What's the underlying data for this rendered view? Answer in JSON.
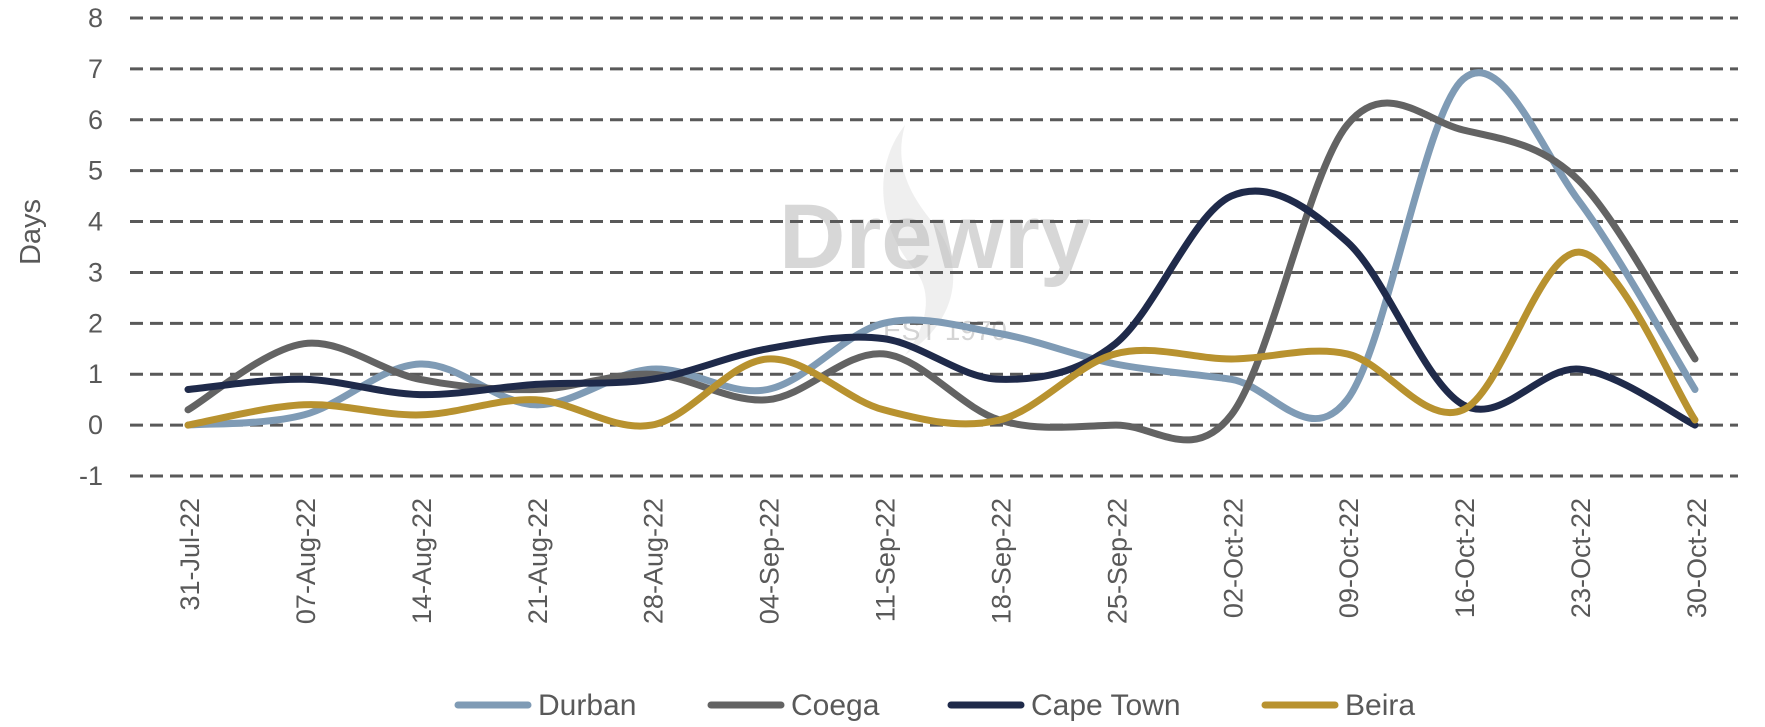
{
  "chart_data": {
    "type": "line",
    "ylabel": "Days",
    "xlabel": "",
    "ylim": [
      -1,
      8
    ],
    "yticks": [
      -1,
      0,
      1,
      2,
      3,
      4,
      5,
      6,
      7,
      8
    ],
    "grid": true,
    "legend_position": "bottom",
    "categories": [
      "31-Jul-22",
      "07-Aug-22",
      "14-Aug-22",
      "21-Aug-22",
      "28-Aug-22",
      "04-Sep-22",
      "11-Sep-22",
      "18-Sep-22",
      "25-Sep-22",
      "02-Oct-22",
      "09-Oct-22",
      "16-Oct-22",
      "23-Oct-22",
      "30-Oct-22"
    ],
    "series": [
      {
        "name": "Durban",
        "color": "#7f9bb5",
        "values": [
          0.0,
          0.2,
          1.2,
          0.4,
          1.1,
          0.7,
          2.0,
          1.8,
          1.2,
          0.9,
          0.5,
          6.8,
          4.4,
          0.7
        ]
      },
      {
        "name": "Coega",
        "color": "#636363",
        "values": [
          0.3,
          1.6,
          0.9,
          0.7,
          1.0,
          0.5,
          1.4,
          0.1,
          0.0,
          0.2,
          5.9,
          5.8,
          4.8,
          1.3
        ]
      },
      {
        "name": "Cape Town",
        "color": "#1f2a4a",
        "values": [
          0.7,
          0.9,
          0.6,
          0.8,
          0.9,
          1.5,
          1.7,
          0.9,
          1.6,
          4.5,
          3.6,
          0.4,
          1.1,
          0.0
        ]
      },
      {
        "name": "Beira",
        "color": "#b8922f",
        "values": [
          0.0,
          0.4,
          0.2,
          0.5,
          0.0,
          1.3,
          0.3,
          0.1,
          1.4,
          1.3,
          1.4,
          0.3,
          3.4,
          0.1
        ]
      }
    ]
  },
  "watermark": {
    "logo_text": "Drewry",
    "sub_text": "EST 1970",
    "color": "#b8b8b8"
  }
}
